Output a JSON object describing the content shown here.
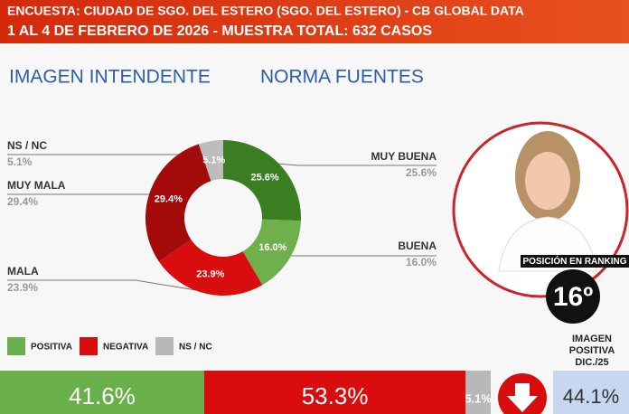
{
  "header": {
    "line1": "ENCUESTA: CIUDAD DE SGO. DEL ESTERO  (SGO. DEL ESTERO) - CB GLOBAL DATA",
    "line2": "1 AL 4 DE FEBRERO DE 2026 - MUESTRA TOTAL: 632 CASOS"
  },
  "heading": {
    "left": "IMAGEN INTENDENTE",
    "right": "NORMA FUENTES"
  },
  "chart_data": [
    {
      "type": "pie",
      "categories": [
        "MUY BUENA",
        "BUENA",
        "MALA",
        "MUY MALA",
        "NS / NC"
      ],
      "values": [
        25.6,
        16.0,
        23.9,
        29.4,
        5.1
      ],
      "value_labels": [
        "25.6%",
        "16.0%",
        "23.9%",
        "29.4%",
        "5.1%"
      ],
      "colors": [
        "#3b7e22",
        "#6fb04d",
        "#d90d0d",
        "#a30a0a",
        "#bdbdbd"
      ]
    },
    {
      "type": "stacked-bar",
      "series": [
        {
          "name": "POSITIVA",
          "color": "#6ab04a",
          "values": [
            41.6
          ],
          "value_labels": [
            "41.6%"
          ]
        },
        {
          "name": "NEGATIVA",
          "color": "#d90d0d",
          "values": [
            53.3
          ],
          "value_labels": [
            "53.3%"
          ]
        },
        {
          "name": "NS / NC",
          "color": "#b8b8b8",
          "values": [
            5.1
          ],
          "value_labels": [
            "5.1%"
          ]
        }
      ]
    }
  ],
  "ranking": {
    "label": "POSICIÓN EN RANKING",
    "position": "16º"
  },
  "previous": {
    "lines": [
      "IMAGEN",
      "POSITIVA",
      "DIC./25"
    ],
    "value_label": "44.1%"
  }
}
